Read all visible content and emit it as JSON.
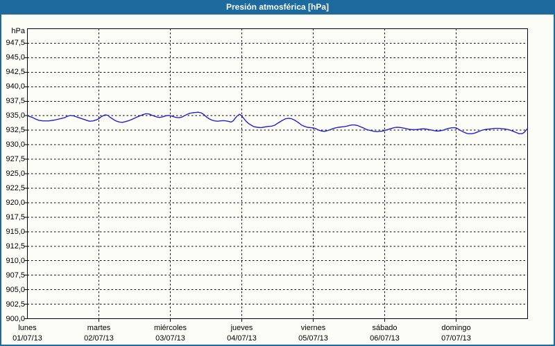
{
  "window": {
    "title": "Presión atmosférica [hPa]"
  },
  "colors": {
    "accent_blue": "#1d6a9e",
    "line_blue": "#2222cc",
    "background": "#fcfdf6",
    "grid_black": "#000000",
    "title_text": "#ffffff"
  },
  "chart_data": {
    "type": "line",
    "title": "Presión atmosférica [hPa]",
    "legend": "none",
    "grid": "dashed",
    "y_axis": {
      "unit": "hPa",
      "min": 900,
      "max": 950,
      "tick_step": 2.5,
      "tick_labels": [
        "947,5",
        "945,0",
        "942,5",
        "940,0",
        "937,5",
        "935,0",
        "932,5",
        "930,0",
        "927,5",
        "925,0",
        "922,5",
        "920,0",
        "917,5",
        "915,0",
        "912,5",
        "910,0",
        "907,5",
        "905,0",
        "902,5",
        "900,0"
      ]
    },
    "x_axis": {
      "days": [
        {
          "name": "lunes",
          "date": "01/07/13"
        },
        {
          "name": "martes",
          "date": "02/07/13"
        },
        {
          "name": "miércoles",
          "date": "03/07/13"
        },
        {
          "name": "jueves",
          "date": "04/07/13"
        },
        {
          "name": "viernes",
          "date": "05/07/13"
        },
        {
          "name": "sábado",
          "date": "06/07/13"
        },
        {
          "name": "domingo",
          "date": "07/07/13"
        }
      ]
    },
    "series": [
      {
        "name": "Presión atmosférica",
        "color": "#2222cc",
        "x_unit": "days_since_2013-07-01",
        "points": [
          [
            0.0,
            935.0
          ],
          [
            0.06,
            934.75
          ],
          [
            0.11,
            934.45
          ],
          [
            0.16,
            934.2
          ],
          [
            0.22,
            934.1
          ],
          [
            0.3,
            934.1
          ],
          [
            0.38,
            934.25
          ],
          [
            0.45,
            934.45
          ],
          [
            0.52,
            934.65
          ],
          [
            0.56,
            934.9
          ],
          [
            0.6,
            935.05
          ],
          [
            0.65,
            934.95
          ],
          [
            0.71,
            934.7
          ],
          [
            0.77,
            934.45
          ],
          [
            0.83,
            934.2
          ],
          [
            0.87,
            934.05
          ],
          [
            0.92,
            934.1
          ],
          [
            0.97,
            934.3
          ],
          [
            1.0,
            934.5
          ],
          [
            1.03,
            934.8
          ],
          [
            1.06,
            935.0
          ],
          [
            1.09,
            935.15
          ],
          [
            1.13,
            935.05
          ],
          [
            1.15,
            934.8
          ],
          [
            1.18,
            934.55
          ],
          [
            1.21,
            934.3
          ],
          [
            1.25,
            934.05
          ],
          [
            1.29,
            933.9
          ],
          [
            1.33,
            933.85
          ],
          [
            1.38,
            934.0
          ],
          [
            1.43,
            934.2
          ],
          [
            1.48,
            934.45
          ],
          [
            1.52,
            934.7
          ],
          [
            1.57,
            934.95
          ],
          [
            1.62,
            935.2
          ],
          [
            1.66,
            935.35
          ],
          [
            1.7,
            935.3
          ],
          [
            1.74,
            935.1
          ],
          [
            1.78,
            934.9
          ],
          [
            1.82,
            934.75
          ],
          [
            1.85,
            934.7
          ],
          [
            1.89,
            934.8
          ],
          [
            1.93,
            934.95
          ],
          [
            1.97,
            935.05
          ],
          [
            2.0,
            935.0
          ],
          [
            2.04,
            934.85
          ],
          [
            2.08,
            934.7
          ],
          [
            2.12,
            934.65
          ],
          [
            2.16,
            934.75
          ],
          [
            2.19,
            934.95
          ],
          [
            2.23,
            935.2
          ],
          [
            2.27,
            935.4
          ],
          [
            2.31,
            935.5
          ],
          [
            2.35,
            935.55
          ],
          [
            2.39,
            935.6
          ],
          [
            2.43,
            935.5
          ],
          [
            2.47,
            935.2
          ],
          [
            2.5,
            934.85
          ],
          [
            2.54,
            934.5
          ],
          [
            2.58,
            934.25
          ],
          [
            2.62,
            934.1
          ],
          [
            2.66,
            934.05
          ],
          [
            2.7,
            934.1
          ],
          [
            2.74,
            934.15
          ],
          [
            2.78,
            934.1
          ],
          [
            2.82,
            934.0
          ],
          [
            2.85,
            933.9
          ],
          [
            2.88,
            934.1
          ],
          [
            2.91,
            934.6
          ],
          [
            2.94,
            935.0
          ],
          [
            2.97,
            935.25
          ],
          [
            3.0,
            934.95
          ],
          [
            3.03,
            934.5
          ],
          [
            3.06,
            934.05
          ],
          [
            3.1,
            933.6
          ],
          [
            3.14,
            933.3
          ],
          [
            3.17,
            933.1
          ],
          [
            3.22,
            933.0
          ],
          [
            3.27,
            932.95
          ],
          [
            3.32,
            933.05
          ],
          [
            3.37,
            933.15
          ],
          [
            3.42,
            933.2
          ],
          [
            3.46,
            933.35
          ],
          [
            3.49,
            933.6
          ],
          [
            3.53,
            933.9
          ],
          [
            3.57,
            934.2
          ],
          [
            3.61,
            934.45
          ],
          [
            3.65,
            934.55
          ],
          [
            3.69,
            934.5
          ],
          [
            3.73,
            934.3
          ],
          [
            3.77,
            934.0
          ],
          [
            3.81,
            933.65
          ],
          [
            3.84,
            933.35
          ],
          [
            3.88,
            933.15
          ],
          [
            3.92,
            933.0
          ],
          [
            3.96,
            932.95
          ],
          [
            4.0,
            932.9
          ],
          [
            4.04,
            932.75
          ],
          [
            4.08,
            932.5
          ],
          [
            4.12,
            932.35
          ],
          [
            4.16,
            932.3
          ],
          [
            4.19,
            932.4
          ],
          [
            4.23,
            932.55
          ],
          [
            4.27,
            932.75
          ],
          [
            4.31,
            932.9
          ],
          [
            4.35,
            933.0
          ],
          [
            4.39,
            933.05
          ],
          [
            4.43,
            933.1
          ],
          [
            4.47,
            933.2
          ],
          [
            4.5,
            933.3
          ],
          [
            4.54,
            933.4
          ],
          [
            4.58,
            933.4
          ],
          [
            4.62,
            933.3
          ],
          [
            4.66,
            933.1
          ],
          [
            4.7,
            932.9
          ],
          [
            4.74,
            932.65
          ],
          [
            4.78,
            932.5
          ],
          [
            4.82,
            932.4
          ],
          [
            4.85,
            932.3
          ],
          [
            4.89,
            932.25
          ],
          [
            4.93,
            932.3
          ],
          [
            4.97,
            932.35
          ],
          [
            5.0,
            932.45
          ],
          [
            5.04,
            932.6
          ],
          [
            5.08,
            932.75
          ],
          [
            5.12,
            932.9
          ],
          [
            5.16,
            933.0
          ],
          [
            5.19,
            933.0
          ],
          [
            5.23,
            932.95
          ],
          [
            5.27,
            932.85
          ],
          [
            5.31,
            932.75
          ],
          [
            5.35,
            932.65
          ],
          [
            5.39,
            932.6
          ],
          [
            5.43,
            932.6
          ],
          [
            5.47,
            932.65
          ],
          [
            5.5,
            932.7
          ],
          [
            5.54,
            932.75
          ],
          [
            5.58,
            932.7
          ],
          [
            5.62,
            932.6
          ],
          [
            5.66,
            932.5
          ],
          [
            5.7,
            932.4
          ],
          [
            5.74,
            932.35
          ],
          [
            5.78,
            932.4
          ],
          [
            5.82,
            932.5
          ],
          [
            5.85,
            932.65
          ],
          [
            5.89,
            932.8
          ],
          [
            5.93,
            932.9
          ],
          [
            5.97,
            932.95
          ],
          [
            6.0,
            932.9
          ],
          [
            6.03,
            932.7
          ],
          [
            6.07,
            932.4
          ],
          [
            6.11,
            932.15
          ],
          [
            6.15,
            931.95
          ],
          [
            6.18,
            931.9
          ],
          [
            6.22,
            931.9
          ],
          [
            6.26,
            932.0
          ],
          [
            6.3,
            932.2
          ],
          [
            6.34,
            932.4
          ],
          [
            6.38,
            932.55
          ],
          [
            6.42,
            932.65
          ],
          [
            6.46,
            932.7
          ],
          [
            6.5,
            932.75
          ],
          [
            6.53,
            932.8
          ],
          [
            6.57,
            932.8
          ],
          [
            6.61,
            932.8
          ],
          [
            6.65,
            932.75
          ],
          [
            6.69,
            932.7
          ],
          [
            6.73,
            932.6
          ],
          [
            6.77,
            932.45
          ],
          [
            6.81,
            932.25
          ],
          [
            6.85,
            932.05
          ],
          [
            6.88,
            931.9
          ],
          [
            6.92,
            931.9
          ],
          [
            6.95,
            932.1
          ],
          [
            6.98,
            932.5
          ],
          [
            7.0,
            932.8
          ]
        ]
      }
    ]
  }
}
